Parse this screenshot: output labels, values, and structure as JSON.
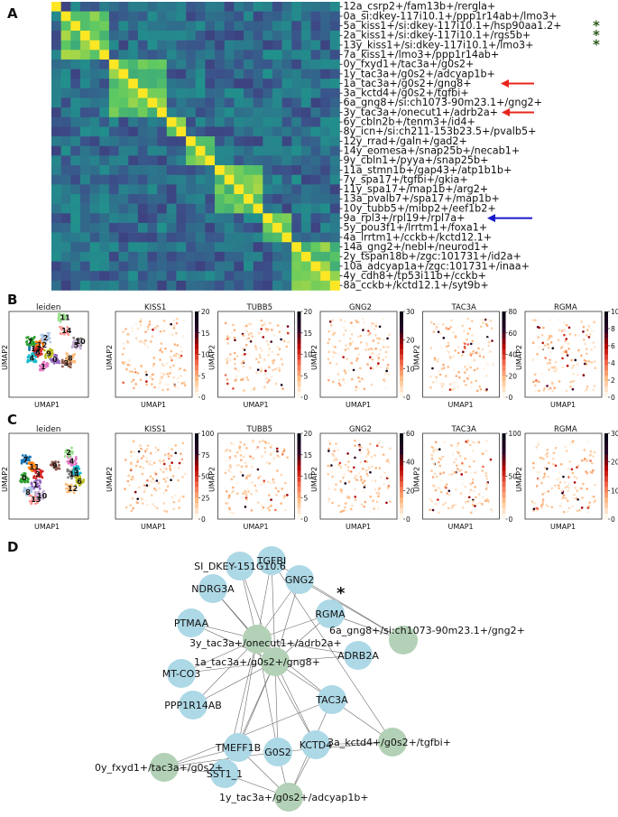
{
  "panel_labels": [
    "A",
    "B",
    "C",
    "D"
  ],
  "panel_a": {
    "row_labels": [
      "12a_csrp2+/fam13b+/rergla+",
      "0a_si:dkey-117i10.1+/ppp1r14ab+/lmo3+",
      "5a_kiss1+/si:dkey-117i10.1+/hsp90aa1.2+",
      "2a_kiss1+/si:dkey-117i10.1+/rgs5b+",
      "13y_kiss1+/si:dkey-117i10.1+/lmo3+",
      "7a_kiss1+/lmo3+/ppp1r14ab+",
      "0y_fxyd1+/tac3a+/g0s2+",
      "1y_tac3a+/g0s2+/adcyap1b+",
      "1a_tac3a+/g0s2+/gng8+",
      "3a_kctd4+/g0s2+/tgfbi+",
      "6a_gng8+/si:ch1073-90m23.1+/gng2+",
      "3y_tac3a+/onecut1+/adrb2a+",
      "6y_cbln2b+/tenm3+/id4+",
      "8y_icn+/si:ch211-153b23.5+/pvalb5+",
      "12y_rrad+/galn+/gad2+",
      "14y_eomesa+/snap25b+/necab1+",
      "9y_cbln1+/pyya+/snap25b+",
      "11a_stmn1b+/gap43+/atp1b1b+",
      "7y_spa17+/tgfbi+/gkia+",
      "11y_spa17+/map1b+/arg2+",
      "13a_pvalb7+/spa17+/map1b+",
      "10y_tubb5+/mibp2+/eef1b2+",
      "9a_rpl3+/rpl19+/rpl7a+",
      "5y_pou3f1+/lrrtm1+/foxa1+",
      "4a_lrrtm1+/cckb+/kctd12.1+",
      "14a_gng2+/nebl+/neurod1+",
      "2y_tspan18b+/zgc:101731+/id2a+",
      "10a_adcyap1a+/zgc:101731+/inaa+",
      "4y_cdh8+/tp53i11b+/cckb+",
      "8a_cckb+/kctd12.1+/syt9b+"
    ],
    "star_symbol": "*",
    "starred_rows": [
      2,
      3,
      4
    ],
    "red_arrow_rows": [
      8,
      11
    ],
    "blue_arrow_rows": [
      22
    ],
    "blocks": [
      [
        0,
        0
      ],
      [
        1,
        5
      ],
      [
        6,
        11
      ],
      [
        12,
        13
      ],
      [
        14,
        16
      ],
      [
        17,
        21
      ],
      [
        22,
        24
      ],
      [
        25,
        29
      ]
    ],
    "colors": {
      "star": "#2d5a1a",
      "red_arrow": "#e8241c",
      "blue_arrow": "#1a1acd"
    }
  },
  "umap_rows": [
    {
      "label": "B",
      "leiden_title": "leiden",
      "xlabel": "UMAP1",
      "ylabel": "UMAP2",
      "cluster_numbers": [
        "13",
        "12",
        "7",
        "6",
        "0",
        "3",
        "1",
        "10",
        "9",
        "4",
        "2",
        "8",
        "11",
        "14",
        "5"
      ],
      "panels": [
        {
          "gene": "KISS1",
          "ticks": [
            "20",
            "15",
            "10",
            "5",
            "0"
          ]
        },
        {
          "gene": "TUBB5",
          "ticks": [
            "20",
            "15",
            "10",
            "5",
            "0"
          ]
        },
        {
          "gene": "GNG2",
          "ticks": [
            "30",
            "20",
            "10",
            "0"
          ]
        },
        {
          "gene": "TAC3A",
          "ticks": [
            "80",
            "60",
            "40",
            "20",
            "0"
          ]
        },
        {
          "gene": "RGMA",
          "ticks": [
            "10",
            "8",
            "6",
            "4",
            "2",
            "0"
          ]
        }
      ]
    },
    {
      "label": "C",
      "leiden_title": "leiden",
      "xlabel": "UMAP1",
      "ylabel": "UMAP2",
      "cluster_numbers": [
        "7",
        "11",
        "0",
        "3",
        "1",
        "9",
        "4",
        "14",
        "6",
        "5",
        "8",
        "12",
        "2",
        "13",
        "10"
      ],
      "panels": [
        {
          "gene": "KISS1",
          "ticks": [
            "100",
            "75",
            "50",
            "25",
            "0"
          ]
        },
        {
          "gene": "TUBB5",
          "ticks": [
            "20",
            "15",
            "10",
            "5",
            "0"
          ]
        },
        {
          "gene": "GNG2",
          "ticks": [
            "60",
            "40",
            "20",
            "0"
          ]
        },
        {
          "gene": "TAC3A",
          "ticks": [
            "100",
            "50",
            "0"
          ]
        },
        {
          "gene": "RGMA",
          "ticks": [
            "30",
            "20",
            "10",
            "0"
          ]
        }
      ]
    }
  ],
  "network": {
    "star_node_symbol": "*",
    "gene_nodes": [
      "TGFBI",
      "SI_DKEY-151G10.6",
      "GNG2",
      "NDRG3A",
      "RGMA",
      "PTMAA",
      "ADRB2A",
      "MT-CO3",
      "PPP1R14AB",
      "TAC3A",
      "KCTD4",
      "TMEFF1B",
      "G0S2",
      "SST1_1"
    ],
    "cluster_nodes": [
      "3y_tac3a+/onecut1+/adrb2a+",
      "1a_tac3a+/g0s2+/gng8+",
      "6a_gng8+/si:ch1073-90m23.1+/gng2+",
      "3a_kctd4+/g0s2+/tgfbi+",
      "0y_fxyd1+/tac3a+/g0s2+",
      "1y_tac3a+/g0s2+/adcyap1b+"
    ],
    "colors": {
      "gene_node": "#add8e6",
      "cluster_node": "#b3d1b6",
      "edge": "#6b6b6b"
    }
  }
}
